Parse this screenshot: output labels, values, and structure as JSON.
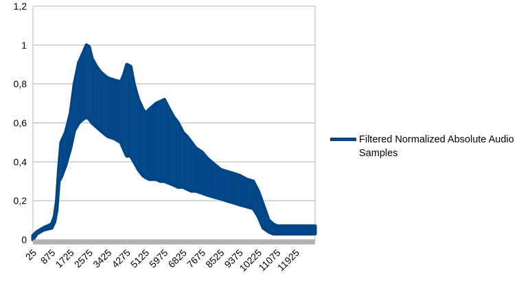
{
  "chart_data": {
    "type": "line",
    "title": "",
    "xlabel": "",
    "ylabel": "",
    "ylim": [
      0,
      1.2
    ],
    "yticks": [
      "0",
      "0,2",
      "0,4",
      "0,6",
      "0,8",
      "1",
      "1,2"
    ],
    "xlim": [
      25,
      12800
    ],
    "xticks": [
      "25",
      "875",
      "1725",
      "2575",
      "3425",
      "4275",
      "5125",
      "5975",
      "6825",
      "7675",
      "8525",
      "9375",
      "10225",
      "11075",
      "11925"
    ],
    "grid": "horizontal",
    "legend": "right",
    "series": [
      {
        "name": "Filtered Normalized Absolute Audio Samples",
        "color": "#004586",
        "upper": {
          "x": [
            25,
            200,
            500,
            875,
            1000,
            1100,
            1200,
            1300,
            1500,
            1725,
            1900,
            2100,
            2300,
            2450,
            2575,
            2700,
            2900,
            3100,
            3300,
            3425,
            3700,
            4000,
            4150,
            4275,
            4450,
            4600,
            4800,
            5000,
            5125,
            5300,
            5600,
            5800,
            5975,
            6200,
            6400,
            6600,
            6825,
            7000,
            7200,
            7400,
            7675,
            7900,
            8200,
            8525,
            8800,
            9100,
            9375,
            9700,
            10000,
            10225,
            10450,
            10700,
            10900,
            11075,
            11300,
            11600,
            11925,
            12300,
            12800
          ],
          "y": [
            0.02,
            0.04,
            0.06,
            0.08,
            0.12,
            0.2,
            0.37,
            0.5,
            0.55,
            0.65,
            0.8,
            0.91,
            0.96,
            1.0,
            0.99,
            0.93,
            0.89,
            0.86,
            0.84,
            0.83,
            0.82,
            0.81,
            0.85,
            0.9,
            0.89,
            0.8,
            0.72,
            0.67,
            0.65,
            0.67,
            0.7,
            0.71,
            0.72,
            0.67,
            0.63,
            0.6,
            0.55,
            0.53,
            0.5,
            0.47,
            0.45,
            0.42,
            0.39,
            0.36,
            0.35,
            0.34,
            0.33,
            0.31,
            0.3,
            0.25,
            0.18,
            0.1,
            0.08,
            0.07,
            0.07,
            0.07,
            0.07,
            0.07,
            0.07
          ]
        },
        "lower": {
          "x": [
            25,
            200,
            500,
            875,
            1000,
            1100,
            1200,
            1300,
            1500,
            1725,
            1900,
            2100,
            2300,
            2450,
            2575,
            2700,
            2900,
            3100,
            3300,
            3425,
            3700,
            4000,
            4150,
            4275,
            4450,
            4600,
            4800,
            5000,
            5125,
            5300,
            5600,
            5800,
            5975,
            6200,
            6400,
            6600,
            6825,
            7000,
            7200,
            7400,
            7675,
            7900,
            8200,
            8525,
            8800,
            9100,
            9375,
            9700,
            10000,
            10225,
            10450,
            10700,
            10900,
            11075,
            11300,
            11600,
            11925,
            12300,
            12800
          ],
          "y": [
            0.0,
            0.03,
            0.05,
            0.06,
            0.09,
            0.15,
            0.3,
            0.32,
            0.38,
            0.47,
            0.56,
            0.6,
            0.62,
            0.63,
            0.62,
            0.6,
            0.58,
            0.56,
            0.54,
            0.53,
            0.52,
            0.5,
            0.46,
            0.43,
            0.43,
            0.4,
            0.36,
            0.33,
            0.32,
            0.31,
            0.31,
            0.3,
            0.3,
            0.29,
            0.28,
            0.27,
            0.27,
            0.26,
            0.25,
            0.25,
            0.24,
            0.23,
            0.22,
            0.21,
            0.2,
            0.19,
            0.18,
            0.17,
            0.16,
            0.12,
            0.06,
            0.04,
            0.03,
            0.03,
            0.03,
            0.03,
            0.03,
            0.03,
            0.03
          ]
        }
      }
    ]
  }
}
